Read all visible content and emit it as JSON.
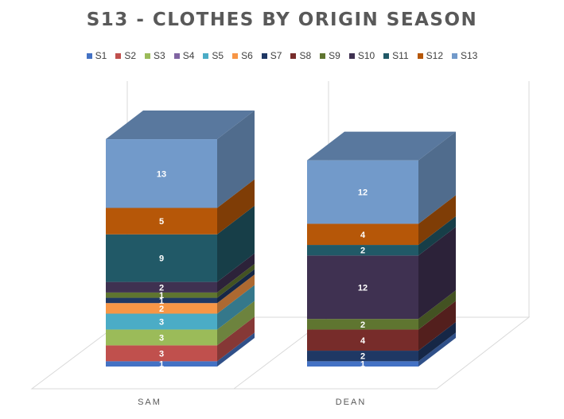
{
  "chart_data": {
    "type": "bar",
    "stacked": true,
    "three_d": true,
    "title": "S13 - CLOTHES BY ORIGIN SEASON",
    "xlabel": "",
    "ylabel": "",
    "legend_position": "top",
    "categories": [
      "SAM",
      "DEAN"
    ],
    "series": [
      {
        "name": "S1",
        "values": [
          1,
          1
        ],
        "color": "#4472C4"
      },
      {
        "name": "S2",
        "values": [
          3,
          0
        ],
        "color": "#C0504D"
      },
      {
        "name": "S3",
        "values": [
          3,
          0
        ],
        "color": "#9BBB59"
      },
      {
        "name": "S4",
        "values": [
          0,
          0
        ],
        "color": "#8064A2"
      },
      {
        "name": "S5",
        "values": [
          3,
          0
        ],
        "color": "#4BACC6"
      },
      {
        "name": "S6",
        "values": [
          2,
          0
        ],
        "color": "#F79646"
      },
      {
        "name": "S7",
        "values": [
          1,
          2
        ],
        "color": "#1F3864"
      },
      {
        "name": "S8",
        "values": [
          0,
          4
        ],
        "color": "#772C2A"
      },
      {
        "name": "S9",
        "values": [
          1,
          2
        ],
        "color": "#5F7530"
      },
      {
        "name": "S10",
        "values": [
          2,
          12
        ],
        "color": "#3F3151"
      },
      {
        "name": "S11",
        "values": [
          9,
          2
        ],
        "color": "#215967"
      },
      {
        "name": "S12",
        "values": [
          5,
          4
        ],
        "color": "#B65708"
      },
      {
        "name": "S13",
        "values": [
          13,
          12
        ],
        "color": "#729ACA"
      }
    ]
  }
}
